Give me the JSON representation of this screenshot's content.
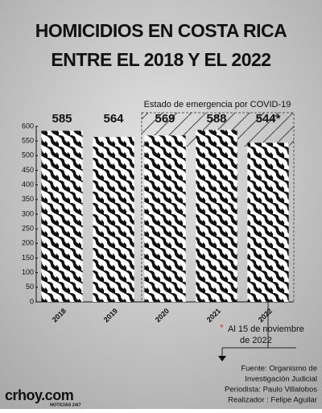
{
  "chart_data": {
    "type": "bar",
    "title": [
      "HOMICIDIOS EN COSTA RICA",
      "ENTRE EL 2018 Y EL 2022"
    ],
    "annotation": "Estado de emergencia por COVID-19",
    "categories": [
      "2018",
      "2019",
      "2020",
      "2021",
      "2022"
    ],
    "series": [
      {
        "color": "#111111",
        "values": [
          585,
          564,
          569,
          588,
          544
        ],
        "value_labels": [
          "585",
          "564",
          "569",
          "588",
          "544*"
        ]
      }
    ],
    "ylim": [
      0,
      600
    ],
    "yticks": [
      0,
      50,
      100,
      150,
      200,
      250,
      300,
      350,
      400,
      450,
      500,
      550,
      600
    ],
    "footnote_mark": "*",
    "footnote": [
      "Al 15 de noviembre",
      "de 2022"
    ],
    "source": [
      "Fuente: Organismo de",
      "Investigación Judicial",
      "Periodista: Paulo Villalobos",
      "Realizador : Felipe Aguilar"
    ],
    "logo": {
      "name": "crhoy.com",
      "tagline": "NOTICIAS 24/7"
    }
  }
}
